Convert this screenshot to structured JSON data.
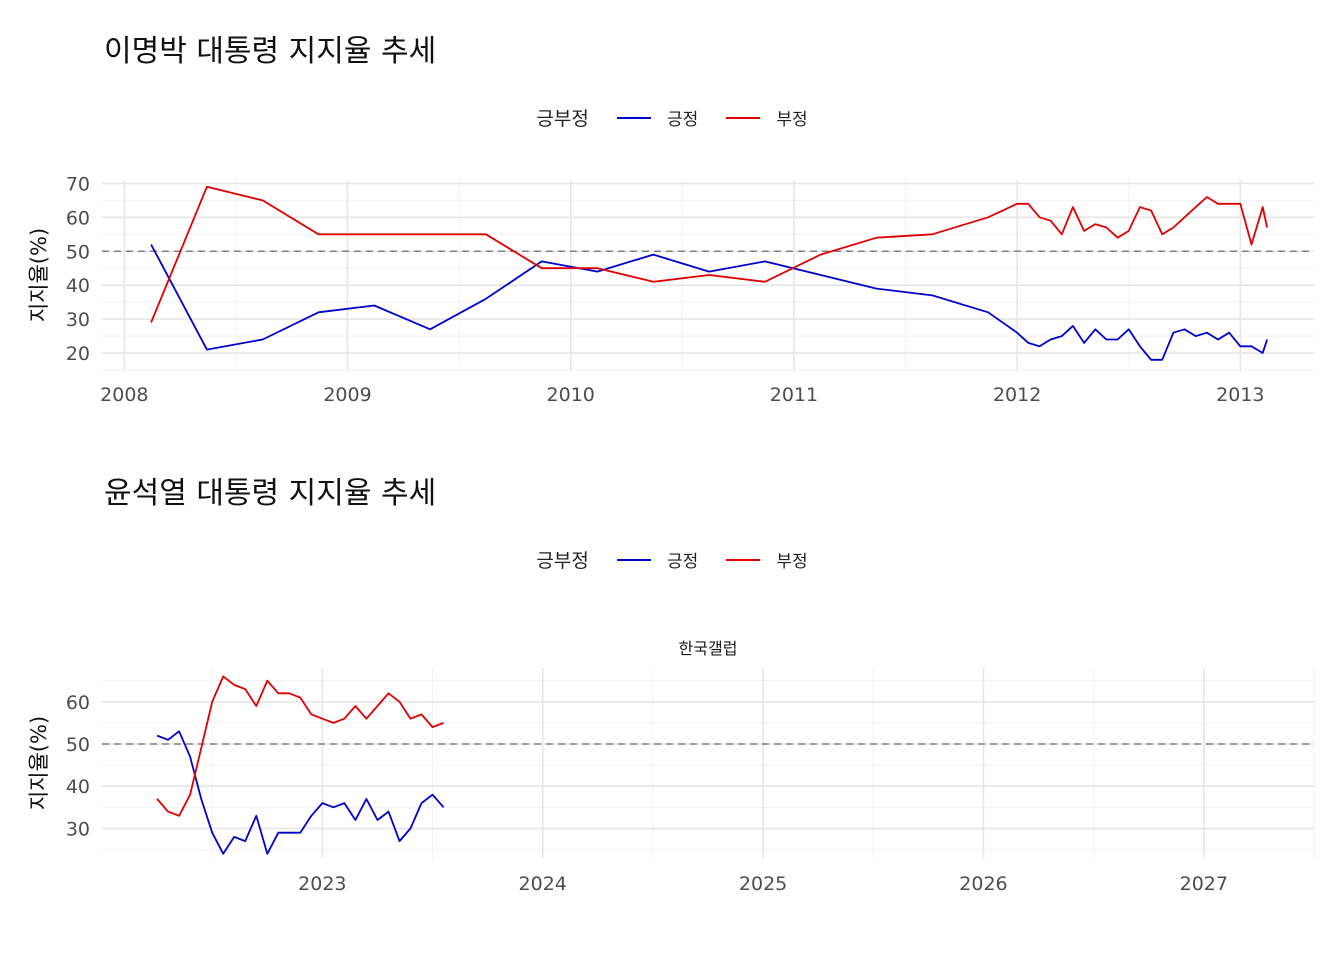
{
  "charts": [
    {
      "title": "이명박 대통령 지지율 추세",
      "legend": {
        "title": "긍부정",
        "items": [
          "긍정",
          "부정"
        ]
      },
      "ylabel": "지지율(%)",
      "facet": ""
    },
    {
      "title": "윤석열 대통령 지지율 추세",
      "legend": {
        "title": "긍부정",
        "items": [
          "긍정",
          "부정"
        ]
      },
      "ylabel": "지지율(%)",
      "facet": "한국갤럽"
    }
  ],
  "colors": {
    "positive": "#0000CD",
    "negative": "#E00000",
    "reference": "#808080"
  },
  "chart_data": [
    {
      "type": "line",
      "title": "이명박 대통령 지지율 추세",
      "xlabel": "",
      "ylabel": "지지율(%)",
      "xlim": [
        2007.9,
        2013.33
      ],
      "ylim": [
        15,
        71
      ],
      "x_ticks": [
        2008,
        2009,
        2010,
        2011,
        2012,
        2013
      ],
      "y_ticks": [
        20,
        30,
        40,
        50,
        60,
        70
      ],
      "reference_line": 50,
      "grid": true,
      "legend_position": "top",
      "series": [
        {
          "name": "긍정",
          "x": [
            2008.12,
            2008.37,
            2008.62,
            2008.87,
            2009.12,
            2009.37,
            2009.62,
            2009.87,
            2010.12,
            2010.37,
            2010.62,
            2010.87,
            2011.12,
            2011.37,
            2011.62,
            2011.87,
            2012.0,
            2012.05,
            2012.1,
            2012.15,
            2012.2,
            2012.25,
            2012.3,
            2012.35,
            2012.4,
            2012.45,
            2012.5,
            2012.55,
            2012.6,
            2012.65,
            2012.7,
            2012.75,
            2012.8,
            2012.85,
            2012.9,
            2012.95,
            2013.0,
            2013.05,
            2013.1,
            2013.12
          ],
          "values": [
            52,
            21,
            24,
            32,
            34,
            27,
            36,
            47,
            44,
            49,
            44,
            47,
            43,
            39,
            37,
            32,
            26,
            23,
            22,
            24,
            25,
            28,
            23,
            27,
            24,
            24,
            27,
            22,
            18,
            18,
            26,
            27,
            25,
            26,
            24,
            26,
            22,
            22,
            20,
            24
          ]
        },
        {
          "name": "부정",
          "x": [
            2008.12,
            2008.37,
            2008.62,
            2008.87,
            2009.12,
            2009.37,
            2009.62,
            2009.87,
            2010.12,
            2010.37,
            2010.62,
            2010.87,
            2011.12,
            2011.37,
            2011.62,
            2011.87,
            2012.0,
            2012.05,
            2012.1,
            2012.15,
            2012.2,
            2012.25,
            2012.3,
            2012.35,
            2012.4,
            2012.45,
            2012.5,
            2012.55,
            2012.6,
            2012.65,
            2012.7,
            2012.75,
            2012.8,
            2012.85,
            2012.9,
            2012.95,
            2013.0,
            2013.05,
            2013.1,
            2013.12
          ],
          "values": [
            29,
            69,
            65,
            55,
            55,
            55,
            55,
            45,
            45,
            41,
            43,
            41,
            49,
            54,
            55,
            60,
            64,
            64,
            60,
            59,
            55,
            63,
            56,
            58,
            57,
            54,
            56,
            63,
            62,
            55,
            57,
            60,
            63,
            66,
            64,
            64,
            64,
            52,
            63,
            57
          ]
        }
      ]
    },
    {
      "type": "line",
      "title": "윤석열 대통령 지지율 추세",
      "facet": "한국갤럽",
      "xlabel": "",
      "ylabel": "지지율(%)",
      "xlim": [
        2022.0,
        2027.5
      ],
      "ylim": [
        23,
        68
      ],
      "x_ticks": [
        2023,
        2024,
        2025,
        2026,
        2027
      ],
      "y_ticks": [
        30,
        40,
        50,
        60
      ],
      "reference_line": 50,
      "grid": true,
      "legend_position": "top",
      "series": [
        {
          "name": "긍정",
          "x": [
            2022.25,
            2022.3,
            2022.35,
            2022.4,
            2022.45,
            2022.5,
            2022.55,
            2022.6,
            2022.65,
            2022.7,
            2022.75,
            2022.8,
            2022.85,
            2022.9,
            2022.95,
            2023.0,
            2023.05,
            2023.1,
            2023.15,
            2023.2,
            2023.25,
            2023.3,
            2023.35,
            2023.4,
            2023.45,
            2023.5,
            2023.55
          ],
          "values": [
            52,
            51,
            53,
            47,
            37,
            29,
            24,
            28,
            27,
            33,
            24,
            29,
            29,
            29,
            33,
            36,
            35,
            36,
            32,
            37,
            32,
            34,
            27,
            30,
            36,
            38,
            35
          ]
        },
        {
          "name": "부정",
          "x": [
            2022.25,
            2022.3,
            2022.35,
            2022.4,
            2022.45,
            2022.5,
            2022.55,
            2022.6,
            2022.65,
            2022.7,
            2022.75,
            2022.8,
            2022.85,
            2022.9,
            2022.95,
            2023.0,
            2023.05,
            2023.1,
            2023.15,
            2023.2,
            2023.25,
            2023.3,
            2023.35,
            2023.4,
            2023.45,
            2023.5,
            2023.55
          ],
          "values": [
            37,
            34,
            33,
            38,
            49,
            60,
            66,
            64,
            63,
            59,
            65,
            62,
            62,
            61,
            57,
            56,
            55,
            56,
            59,
            56,
            59,
            62,
            60,
            56,
            57,
            54,
            55
          ]
        }
      ]
    }
  ]
}
